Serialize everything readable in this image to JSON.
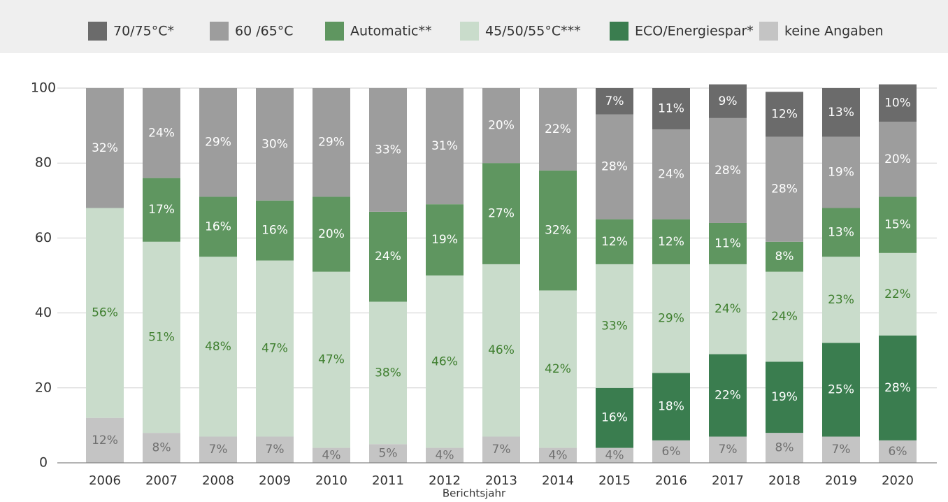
{
  "chart_data": {
    "type": "stacked_bar",
    "x_label": "Berichtsjahr",
    "categories": [
      "2006",
      "2007",
      "2008",
      "2009",
      "2010",
      "2011",
      "2012",
      "2013",
      "2014",
      "2015",
      "2016",
      "2017",
      "2018",
      "2019",
      "2020"
    ],
    "ylim": [
      0,
      100
    ],
    "yticks": [
      0,
      20,
      40,
      60,
      80,
      100
    ],
    "grid": true,
    "legend": "top",
    "series": [
      {
        "name": "70/75°C*",
        "color": "#6b6b6b",
        "values": [
          null,
          null,
          null,
          null,
          null,
          null,
          null,
          null,
          null,
          7,
          11,
          9,
          12,
          13,
          10
        ],
        "value_labels": [
          null,
          null,
          null,
          null,
          null,
          null,
          null,
          null,
          null,
          "7%",
          "11%",
          "9%",
          "12%",
          "13%",
          "10%"
        ]
      },
      {
        "name": "60 /65°C",
        "color": "#9d9d9d",
        "values": [
          32,
          24,
          29,
          30,
          29,
          33,
          31,
          20,
          22,
          28,
          24,
          28,
          28,
          19,
          20
        ],
        "value_labels": [
          "32%",
          "24%",
          "29%",
          "30%",
          "29%",
          "33%",
          "31%",
          "20%",
          "22%",
          "28%",
          "24%",
          "28%",
          "28%",
          "19%",
          "20%"
        ]
      },
      {
        "name": "Automatic**",
        "color": "#5f9660",
        "values": [
          null,
          17,
          16,
          16,
          20,
          24,
          19,
          27,
          32,
          12,
          12,
          11,
          8,
          13,
          15
        ],
        "value_labels": [
          null,
          "17%",
          "16%",
          "16%",
          "20%",
          "24%",
          "19%",
          "27%",
          "32%",
          "12%",
          "12%",
          "11%",
          "8%",
          "13%",
          "15%"
        ]
      },
      {
        "name": "45/50/55°C***",
        "color": "#c9dccb",
        "values": [
          56,
          51,
          48,
          47,
          47,
          38,
          46,
          46,
          42,
          33,
          29,
          24,
          24,
          23,
          22
        ],
        "value_labels": [
          "56%",
          "51%",
          "48%",
          "47%",
          "47%",
          "38%",
          "46%",
          "46%",
          "42%",
          "33%",
          "29%",
          "24%",
          "24%",
          "23%",
          "22%"
        ]
      },
      {
        "name": "ECO/Energiespar*",
        "color": "#3a7d4f",
        "values": [
          null,
          null,
          null,
          null,
          null,
          null,
          null,
          null,
          null,
          16,
          18,
          22,
          19,
          25,
          28
        ],
        "value_labels": [
          null,
          null,
          null,
          null,
          null,
          null,
          null,
          null,
          null,
          "16%",
          "18%",
          "22%",
          "19%",
          "25%",
          "28%"
        ]
      },
      {
        "name": "keine Angaben",
        "color": "#c4c4c4",
        "values": [
          12,
          8,
          7,
          7,
          4,
          5,
          4,
          7,
          4,
          4,
          6,
          7,
          8,
          7,
          6
        ],
        "value_labels": [
          "12%",
          "8%",
          "7%",
          "7%",
          "4%",
          "5%",
          "4%",
          "7%",
          "4%",
          "4%",
          "6%",
          "7%",
          "8%",
          "7%",
          "6%"
        ]
      }
    ]
  }
}
